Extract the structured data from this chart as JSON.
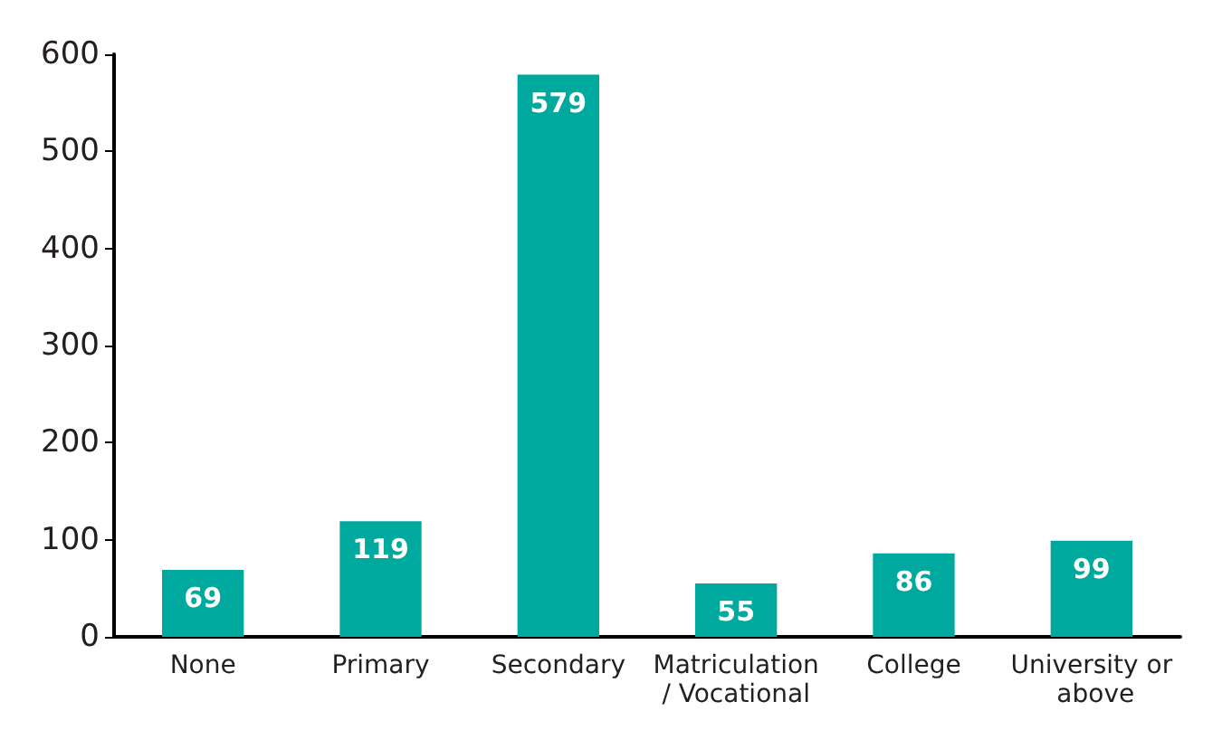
{
  "chart_data": {
    "type": "bar",
    "categories": [
      "None",
      "Primary",
      "Secondary",
      "Matriculation/ Vocational",
      "College",
      "University or above"
    ],
    "values": [
      69,
      119,
      579,
      55,
      86,
      99
    ],
    "color": "#00a99d",
    "ylim": [
      0,
      600
    ],
    "yticks": [
      0,
      100,
      200,
      300,
      400,
      500,
      600
    ],
    "grid": false,
    "data_labels": true
  }
}
